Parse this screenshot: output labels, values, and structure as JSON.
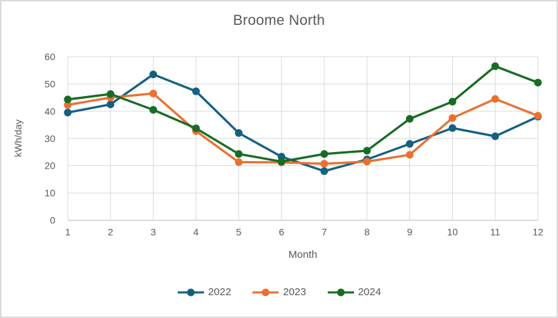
{
  "chart_data": {
    "type": "line",
    "title": "Broome North",
    "xlabel": "Month",
    "ylabel": "kWh/day",
    "categories": [
      "1",
      "2",
      "3",
      "4",
      "5",
      "6",
      "7",
      "8",
      "9",
      "10",
      "11",
      "12"
    ],
    "ylim": [
      0,
      60
    ],
    "ytick_step": 10,
    "grid": "both",
    "legend_position": "bottom-center",
    "series": [
      {
        "name": "2022",
        "color": "#156082",
        "values": [
          39.5,
          42.5,
          53.5,
          47.3,
          32.0,
          23.3,
          18.0,
          22.3,
          28.0,
          33.8,
          30.8,
          38.0
        ]
      },
      {
        "name": "2023",
        "color": "#E97132",
        "values": [
          42.3,
          45.0,
          46.5,
          32.7,
          21.3,
          21.2,
          20.7,
          21.5,
          24.0,
          37.5,
          44.5,
          38.3
        ]
      },
      {
        "name": "2024",
        "color": "#196B24",
        "values": [
          44.3,
          46.3,
          40.5,
          33.7,
          24.3,
          21.5,
          24.3,
          25.5,
          37.2,
          43.5,
          56.5,
          50.5
        ]
      }
    ]
  },
  "colors": {
    "text": "#595959",
    "gridline": "#D9D9D9",
    "axis_line": "#BFBFBF",
    "background": "#FFFFFF",
    "frame_border": "#D9D9D9"
  }
}
